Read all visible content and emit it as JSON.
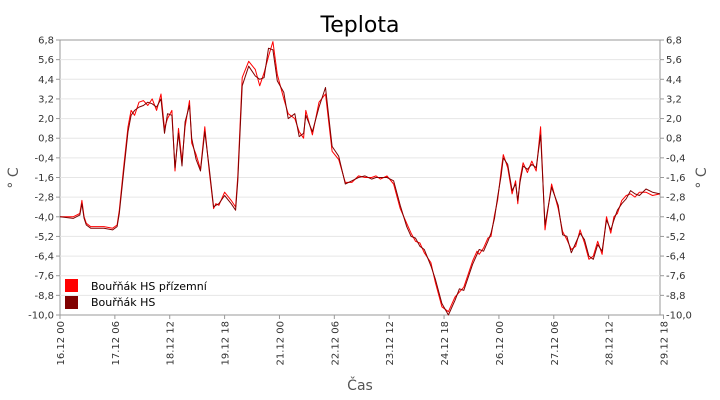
{
  "chart_data": {
    "type": "line",
    "title": "Teplota",
    "xlabel": "Čas",
    "ylabel": "° C",
    "ylim": [
      -10.0,
      6.8
    ],
    "y_ticks": [
      "6,8",
      "5,6",
      "4,4",
      "3,2",
      "2,0",
      "0,8",
      "-0,4",
      "-1,6",
      "-2,8",
      "-4,0",
      "-5,2",
      "-6,4",
      "-7,6",
      "-8,8",
      "-10,0"
    ],
    "y_ticks_right": [
      "6,8",
      "5,6",
      "4,4",
      "3,2",
      "2,0",
      "0,8",
      "-0,4",
      "-1,6",
      "-2,8",
      "-4,0",
      "-5,2",
      "-6,4",
      "-7,6",
      "-8,8",
      "-10,0"
    ],
    "x_range_days": [
      0,
      13.67
    ],
    "x_ticks": [
      "16.12 00",
      "17.12 06",
      "18.12 12",
      "19.12 18",
      "21.12 00",
      "22.12 06",
      "23.12 12",
      "24.12 18",
      "26.12 00",
      "27.12 06",
      "28.12 12",
      "29.12 18"
    ],
    "grid": true,
    "legend_position": "bottom-left",
    "series": [
      {
        "name": "Bouřňák HS přízemní",
        "color": "#ff0000",
        "x": [
          0,
          0.3,
          0.45,
          0.5,
          0.55,
          0.6,
          0.7,
          1.0,
          1.2,
          1.3,
          1.35,
          1.45,
          1.55,
          1.62,
          1.7,
          1.8,
          1.9,
          2.0,
          2.1,
          2.2,
          2.3,
          2.38,
          2.45,
          2.55,
          2.62,
          2.7,
          2.78,
          2.85,
          2.95,
          3.0,
          3.1,
          3.2,
          3.3,
          3.4,
          3.5,
          3.55,
          3.62,
          3.75,
          3.9,
          4.0,
          4.05,
          4.15,
          4.3,
          4.45,
          4.55,
          4.65,
          4.75,
          4.85,
          4.95,
          5.1,
          5.2,
          5.35,
          5.45,
          5.55,
          5.6,
          5.75,
          5.9,
          6.05,
          6.2,
          6.35,
          6.5,
          6.65,
          6.8,
          6.95,
          7.1,
          7.2,
          7.3,
          7.45,
          7.6,
          7.75,
          7.9,
          8.0,
          8.1,
          8.2,
          8.3,
          8.45,
          8.55,
          8.7,
          8.85,
          9.0,
          9.1,
          9.2,
          9.3,
          9.4,
          9.5,
          9.55,
          9.65,
          9.75,
          9.82,
          9.9,
          9.97,
          10.05,
          10.1,
          10.2,
          10.3,
          10.38,
          10.43,
          10.48,
          10.55,
          10.65,
          10.75,
          10.85,
          10.95,
          11.05,
          11.2,
          11.35,
          11.45,
          11.55,
          11.65,
          11.75,
          11.85,
          11.95,
          12.05,
          12.15,
          12.25,
          12.35,
          12.45,
          12.55,
          12.62,
          12.7,
          12.8,
          12.9,
          13.0,
          13.1,
          13.2,
          13.35,
          13.5,
          13.67
        ],
        "y": [
          -4.0,
          -4.0,
          -3.8,
          -3.0,
          -4.0,
          -4.4,
          -4.6,
          -4.6,
          -4.7,
          -4.5,
          -3.6,
          -1.0,
          1.5,
          2.5,
          2.2,
          3.0,
          3.1,
          2.8,
          3.2,
          2.5,
          3.5,
          1.4,
          2.0,
          2.5,
          -1.2,
          1.4,
          -0.6,
          1.5,
          3.1,
          0.5,
          -0.2,
          -1.1,
          1.5,
          -1.2,
          -3.5,
          -3.2,
          -3.3,
          -2.5,
          -3.0,
          -3.4,
          -1.5,
          4.5,
          5.5,
          5.0,
          4.0,
          4.8,
          5.8,
          6.7,
          4.7,
          3.2,
          2.3,
          2.0,
          1.2,
          0.8,
          2.5,
          1.0,
          3.0,
          3.5,
          0.0,
          -0.5,
          -1.9,
          -1.9,
          -1.5,
          -1.6,
          -1.6,
          -1.5,
          -1.7,
          -1.5,
          -2.0,
          -3.5,
          -4.4,
          -5.0,
          -5.5,
          -5.6,
          -6.2,
          -6.8,
          -8.0,
          -9.5,
          -9.8,
          -8.9,
          -8.6,
          -8.3,
          -7.5,
          -6.7,
          -6.1,
          -6.3,
          -5.9,
          -5.3,
          -5.2,
          -3.9,
          -3.0,
          -1.2,
          -0.2,
          -1.0,
          -2.6,
          -1.8,
          -3.2,
          -1.7,
          -0.7,
          -1.3,
          -0.6,
          -1.2,
          1.5,
          -4.8,
          -2.0,
          -3.5,
          -4.9,
          -5.4,
          -6.0,
          -5.8,
          -4.8,
          -5.6,
          -6.6,
          -6.4,
          -5.5,
          -6.3,
          -4.0,
          -5.0,
          -4.0,
          -3.8,
          -3.0,
          -2.7,
          -2.6,
          -2.8,
          -2.5,
          -2.5,
          -2.7,
          -2.6
        ]
      },
      {
        "name": "Bouřňák HS",
        "color": "#800000",
        "x": [
          0,
          0.3,
          0.45,
          0.5,
          0.55,
          0.6,
          0.7,
          1.0,
          1.2,
          1.3,
          1.35,
          1.45,
          1.55,
          1.62,
          1.7,
          1.8,
          1.9,
          2.0,
          2.1,
          2.2,
          2.3,
          2.38,
          2.45,
          2.55,
          2.62,
          2.7,
          2.78,
          2.85,
          2.95,
          3.0,
          3.1,
          3.2,
          3.3,
          3.4,
          3.5,
          3.55,
          3.62,
          3.75,
          3.9,
          4.0,
          4.05,
          4.15,
          4.3,
          4.45,
          4.55,
          4.65,
          4.75,
          4.85,
          4.95,
          5.1,
          5.2,
          5.35,
          5.45,
          5.55,
          5.6,
          5.75,
          5.9,
          6.05,
          6.2,
          6.35,
          6.5,
          6.65,
          6.8,
          6.95,
          7.1,
          7.2,
          7.3,
          7.45,
          7.6,
          7.75,
          7.9,
          8.0,
          8.1,
          8.2,
          8.3,
          8.45,
          8.55,
          8.7,
          8.85,
          9.0,
          9.1,
          9.2,
          9.3,
          9.4,
          9.5,
          9.55,
          9.65,
          9.75,
          9.82,
          9.9,
          9.97,
          10.05,
          10.1,
          10.2,
          10.3,
          10.38,
          10.43,
          10.48,
          10.55,
          10.65,
          10.75,
          10.85,
          10.95,
          11.05,
          11.2,
          11.35,
          11.45,
          11.55,
          11.65,
          11.75,
          11.85,
          11.95,
          12.05,
          12.15,
          12.25,
          12.35,
          12.45,
          12.55,
          12.62,
          12.7,
          12.8,
          12.9,
          13.0,
          13.1,
          13.2,
          13.35,
          13.5,
          13.67
        ],
        "y": [
          -4.0,
          -4.1,
          -3.9,
          -3.2,
          -4.1,
          -4.5,
          -4.7,
          -4.7,
          -4.8,
          -4.6,
          -3.8,
          -1.3,
          1.2,
          2.2,
          2.5,
          2.7,
          2.8,
          3.0,
          2.9,
          2.7,
          3.2,
          1.1,
          2.3,
          2.2,
          -1.0,
          1.1,
          -0.9,
          1.8,
          2.8,
          0.8,
          -0.5,
          -1.2,
          1.2,
          -1.0,
          -3.4,
          -3.3,
          -3.2,
          -2.7,
          -3.2,
          -3.6,
          -1.8,
          4.0,
          5.2,
          4.6,
          4.4,
          4.5,
          6.3,
          6.2,
          4.3,
          3.6,
          2.0,
          2.3,
          0.9,
          1.1,
          2.2,
          1.2,
          2.7,
          3.9,
          0.3,
          -0.3,
          -2.0,
          -1.8,
          -1.6,
          -1.5,
          -1.7,
          -1.6,
          -1.6,
          -1.6,
          -1.8,
          -3.3,
          -4.6,
          -5.2,
          -5.3,
          -5.8,
          -6.0,
          -7.0,
          -7.8,
          -9.3,
          -10.0,
          -9.1,
          -8.4,
          -8.5,
          -7.7,
          -6.9,
          -6.3,
          -6.0,
          -6.1,
          -5.5,
          -5.0,
          -4.1,
          -2.8,
          -1.5,
          -0.4,
          -0.8,
          -2.4,
          -2.0,
          -3.0,
          -1.9,
          -0.9,
          -1.1,
          -0.8,
          -1.0,
          1.0,
          -4.5,
          -2.2,
          -3.3,
          -5.1,
          -5.2,
          -6.2,
          -5.6,
          -5.0,
          -5.4,
          -6.4,
          -6.6,
          -5.7,
          -6.1,
          -4.2,
          -4.8,
          -4.2,
          -3.6,
          -3.2,
          -2.9,
          -2.4,
          -2.6,
          -2.7,
          -2.3,
          -2.5,
          -2.6
        ]
      }
    ]
  }
}
